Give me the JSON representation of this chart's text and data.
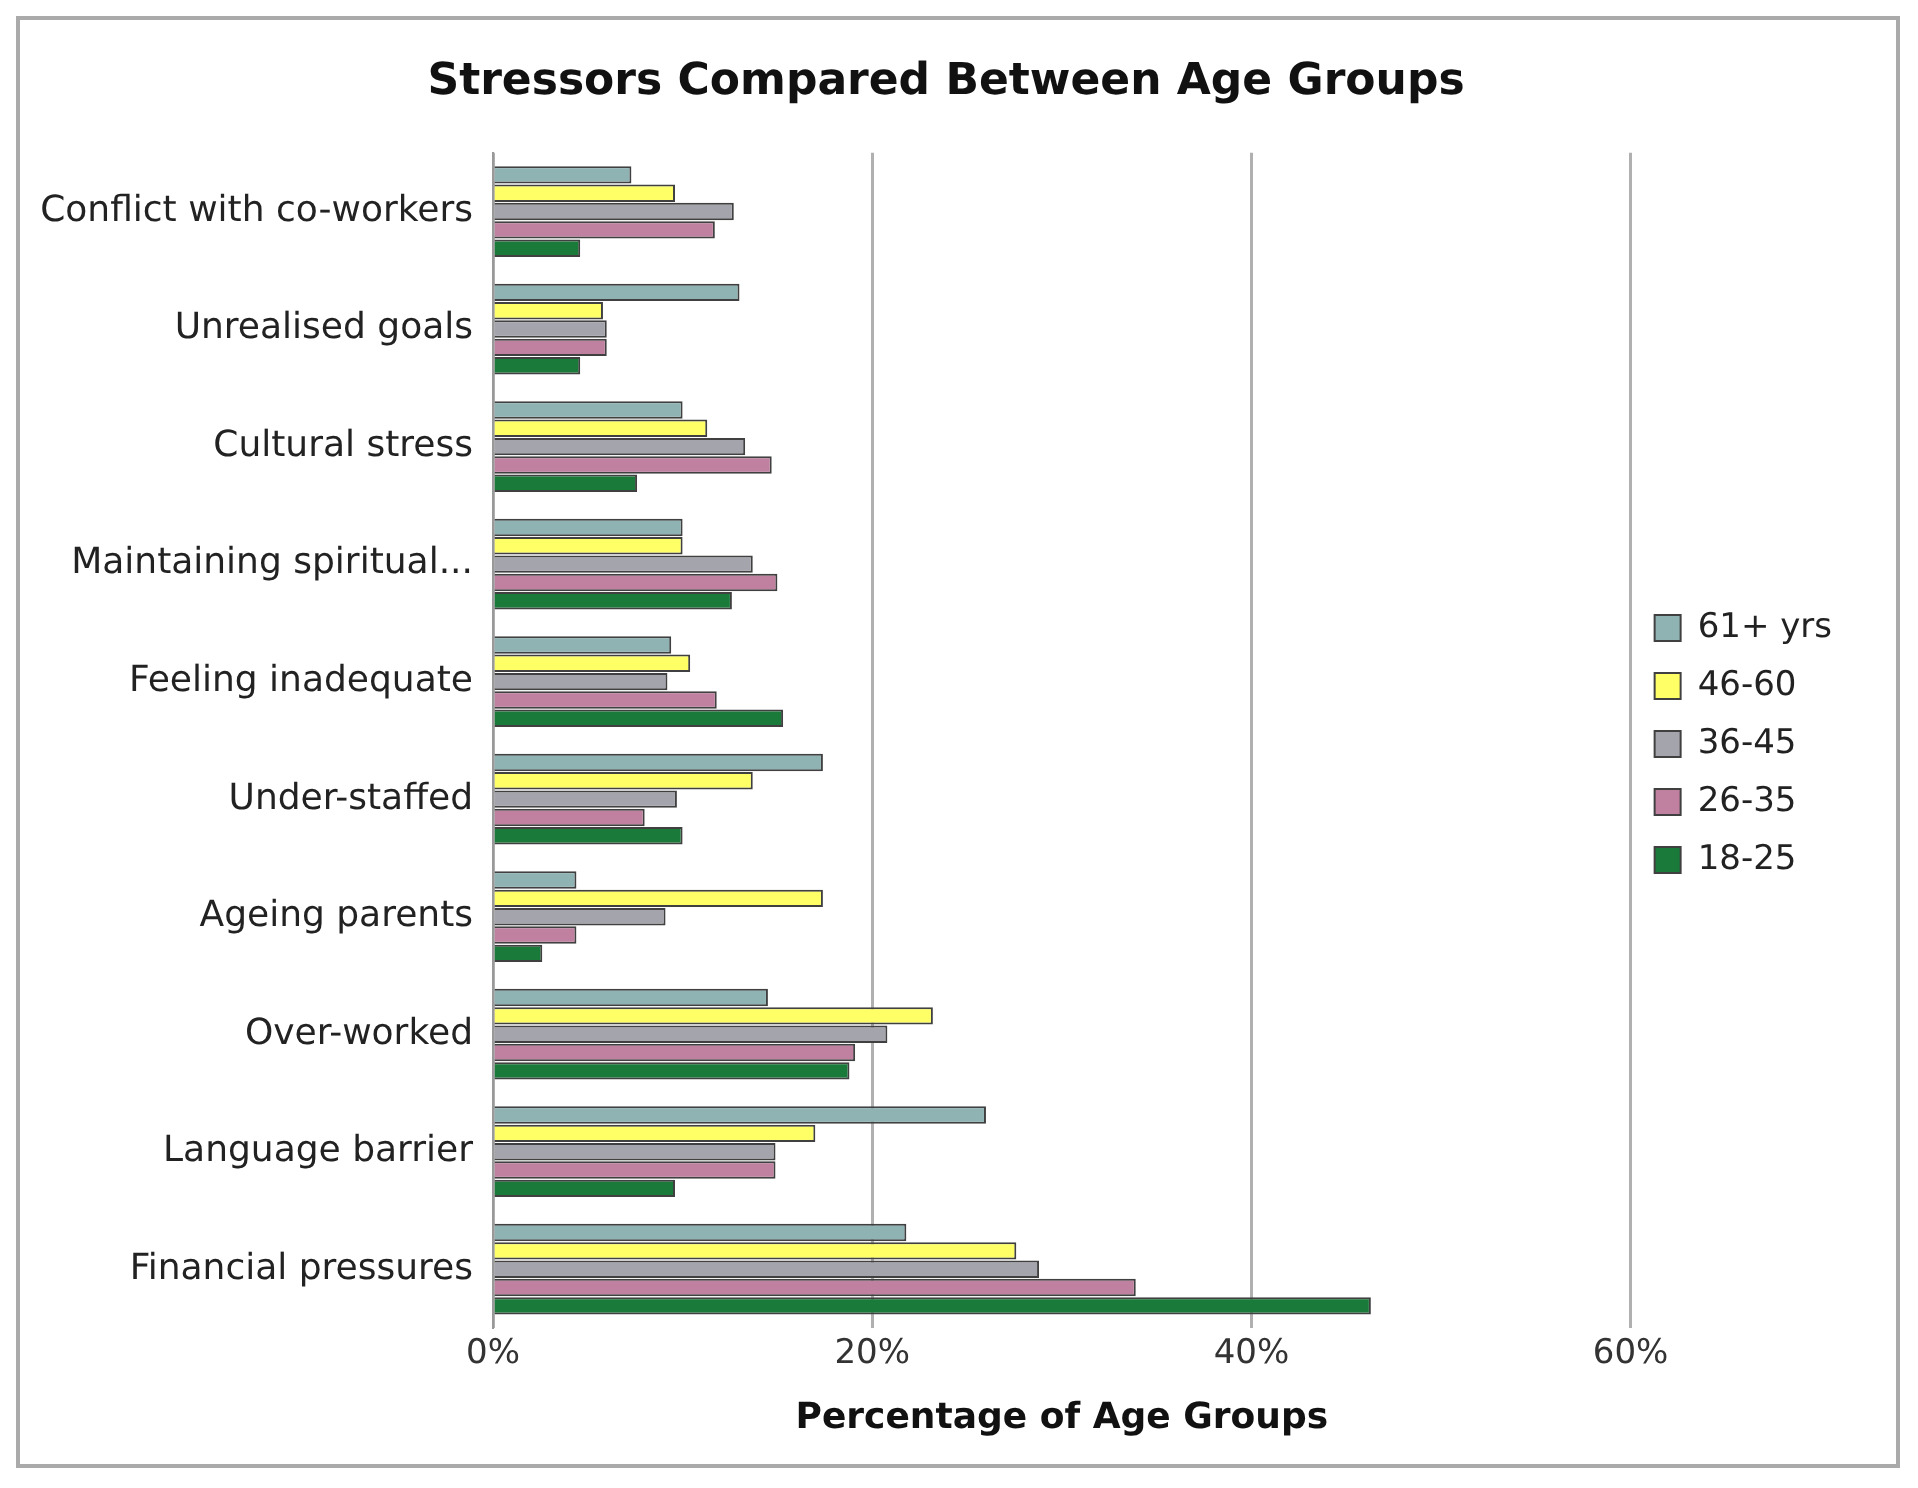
{
  "chart_data": {
    "type": "bar",
    "orientation": "horizontal",
    "title": "Stressors Compared Between Age Groups",
    "xlabel": "Percentage of Age Groups",
    "categories": [
      "Conflict with co-workers",
      "Unrealised goals",
      "Cultural stress",
      "Maintaining spiritual...",
      "Feeling inadequate",
      "Under-staffed",
      "Ageing parents",
      "Over-worked",
      "Language barrier",
      "Financial pressures"
    ],
    "series": [
      {
        "name": "61+ yrs",
        "color": "#8fb3b3",
        "values": [
          7.3,
          13,
          10,
          10,
          9.4,
          17.4,
          4.4,
          14.5,
          26,
          21.8
        ]
      },
      {
        "name": "46-60",
        "color": "#ffff66",
        "values": [
          9.6,
          5.8,
          11.3,
          10,
          10.4,
          13.7,
          17.4,
          23.2,
          17,
          27.6
        ]
      },
      {
        "name": "36-45",
        "color": "#a4a4ac",
        "values": [
          12.7,
          6,
          13.3,
          13.7,
          9.2,
          9.7,
          9.1,
          20.8,
          14.9,
          28.8
        ]
      },
      {
        "name": "26-35",
        "color": "#c080a0",
        "values": [
          11.7,
          6,
          14.7,
          15,
          11.8,
          8,
          4.4,
          19.1,
          14.9,
          33.9
        ]
      },
      {
        "name": "18-25",
        "color": "#1a7a3a",
        "values": [
          4.6,
          4.6,
          7.6,
          12.6,
          15.3,
          10,
          2.6,
          18.8,
          9.6,
          46.3
        ]
      }
    ],
    "xlim": [
      0,
      60
    ],
    "xticks": [
      {
        "value": 0,
        "label": "0%"
      },
      {
        "value": 20,
        "label": "20%"
      },
      {
        "value": 40,
        "label": "40%"
      },
      {
        "value": 60,
        "label": "60%"
      }
    ],
    "grid": "x",
    "legend": "right"
  }
}
